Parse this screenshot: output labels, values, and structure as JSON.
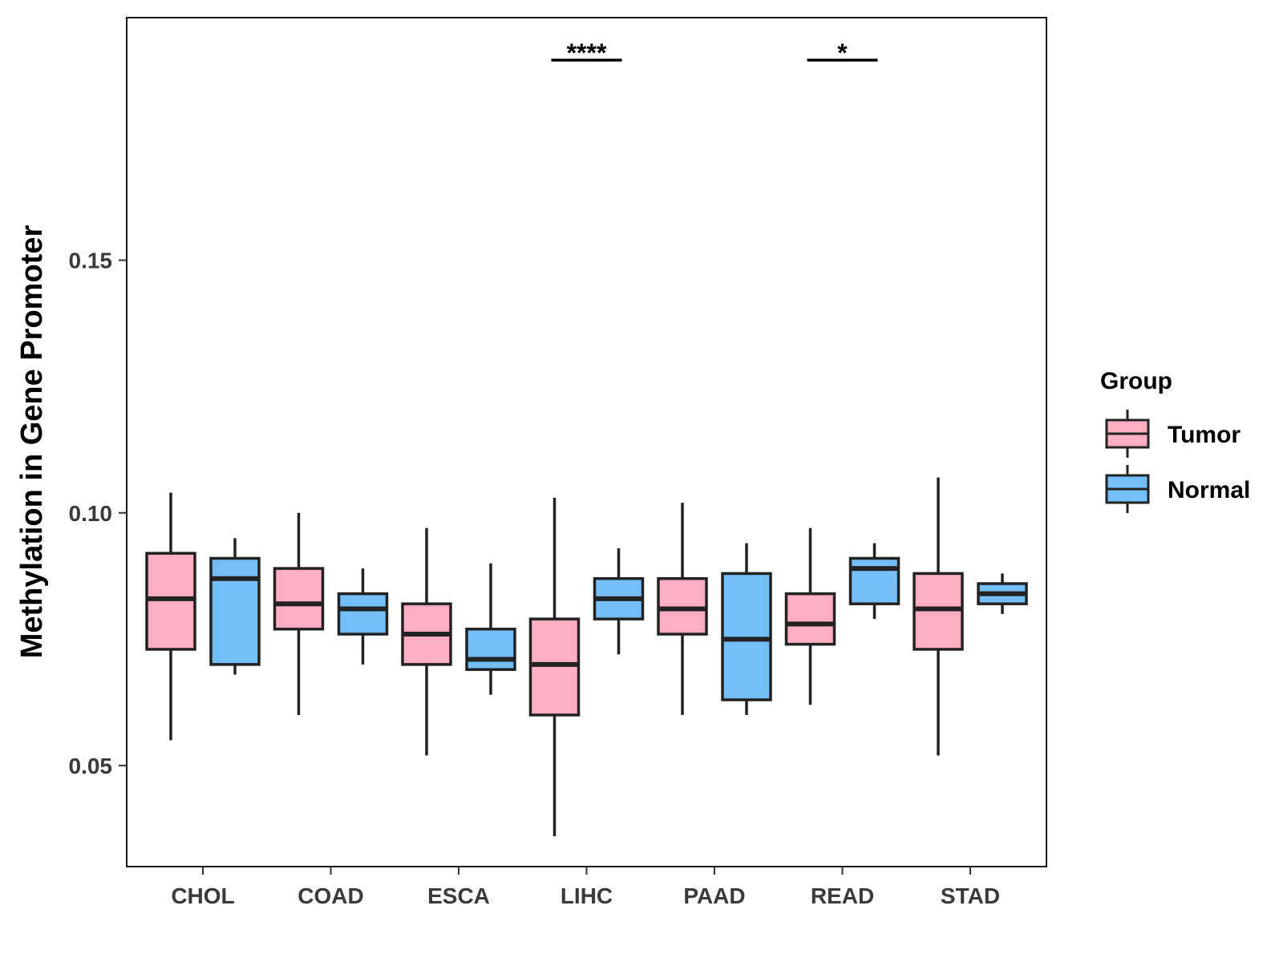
{
  "chart_data": {
    "type": "boxplot",
    "title": "",
    "xlabel": "",
    "ylabel": "Methylation in Gene Promoter",
    "ylim": [
      0.03,
      0.198
    ],
    "yticks": [
      0.05,
      0.1,
      0.15
    ],
    "ytick_labels": [
      "0.05",
      "0.10",
      "0.15"
    ],
    "grid": false,
    "categories": [
      "CHOL",
      "COAD",
      "ESCA",
      "LIHC",
      "PAAD",
      "READ",
      "STAD"
    ],
    "legend": {
      "title": "Group",
      "position": "right",
      "entries": [
        {
          "name": "Tumor",
          "color": "#FFAEC1"
        },
        {
          "name": "Normal",
          "color": "#74BFF8"
        }
      ]
    },
    "series": [
      {
        "name": "Tumor",
        "color": "#FFAEC1",
        "boxes": [
          {
            "category": "CHOL",
            "min": 0.055,
            "q1": 0.073,
            "median": 0.083,
            "q3": 0.092,
            "max": 0.104
          },
          {
            "category": "COAD",
            "min": 0.06,
            "q1": 0.077,
            "median": 0.082,
            "q3": 0.089,
            "max": 0.1
          },
          {
            "category": "ESCA",
            "min": 0.052,
            "q1": 0.07,
            "median": 0.076,
            "q3": 0.082,
            "max": 0.097
          },
          {
            "category": "LIHC",
            "min": 0.036,
            "q1": 0.06,
            "median": 0.07,
            "q3": 0.079,
            "max": 0.103
          },
          {
            "category": "PAAD",
            "min": 0.06,
            "q1": 0.076,
            "median": 0.081,
            "q3": 0.087,
            "max": 0.102
          },
          {
            "category": "READ",
            "min": 0.062,
            "q1": 0.074,
            "median": 0.078,
            "q3": 0.084,
            "max": 0.097
          },
          {
            "category": "STAD",
            "min": 0.052,
            "q1": 0.073,
            "median": 0.081,
            "q3": 0.088,
            "max": 0.107
          }
        ]
      },
      {
        "name": "Normal",
        "color": "#74BFF8",
        "boxes": [
          {
            "category": "CHOL",
            "min": 0.068,
            "q1": 0.07,
            "median": 0.087,
            "q3": 0.091,
            "max": 0.095
          },
          {
            "category": "COAD",
            "min": 0.07,
            "q1": 0.076,
            "median": 0.081,
            "q3": 0.084,
            "max": 0.089
          },
          {
            "category": "ESCA",
            "min": 0.064,
            "q1": 0.069,
            "median": 0.071,
            "q3": 0.077,
            "max": 0.09
          },
          {
            "category": "LIHC",
            "min": 0.072,
            "q1": 0.079,
            "median": 0.083,
            "q3": 0.087,
            "max": 0.093
          },
          {
            "category": "PAAD",
            "min": 0.06,
            "q1": 0.063,
            "median": 0.075,
            "q3": 0.088,
            "max": 0.094
          },
          {
            "category": "READ",
            "min": 0.079,
            "q1": 0.082,
            "median": 0.089,
            "q3": 0.091,
            "max": 0.094
          },
          {
            "category": "STAD",
            "min": 0.08,
            "q1": 0.082,
            "median": 0.084,
            "q3": 0.086,
            "max": 0.088
          }
        ]
      }
    ],
    "annotations": [
      {
        "category": "LIHC",
        "label": "****"
      },
      {
        "category": "READ",
        "label": "*"
      }
    ]
  }
}
